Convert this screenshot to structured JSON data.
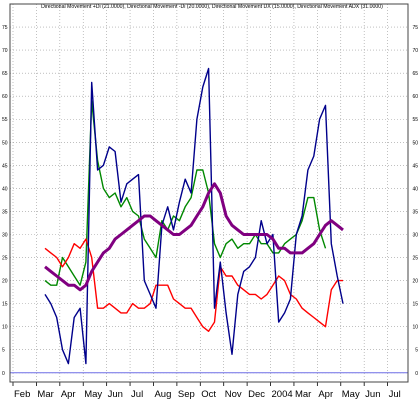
{
  "chart_data": {
    "type": "line",
    "title": "Directional Movement +Di (21.0000), Directional Movement -Di (20.0000), Directional Movement DX (15.0000), Directional Movement ADX (31.0000)",
    "ylim": [
      -2,
      80
    ],
    "y_ticks": [
      0,
      5,
      10,
      15,
      20,
      25,
      30,
      35,
      40,
      45,
      50,
      55,
      60,
      65,
      70,
      75
    ],
    "x_ticks": [
      "Feb",
      "Mar",
      "Apr",
      "May",
      "Jun",
      "Jul",
      "Aug",
      "Sep",
      "Oct",
      "Nov",
      "Dec",
      "2004",
      "Mar",
      "Apr",
      "May",
      "Jun",
      "Jul"
    ],
    "grid": true,
    "zero_line_color": "#6f6fe6",
    "series": [
      {
        "name": "Directional Movement +Di",
        "color": "#008800",
        "values": [
          [
            0,
            20
          ],
          [
            1,
            19
          ],
          [
            2,
            19
          ],
          [
            3,
            25
          ],
          [
            4,
            23
          ],
          [
            5,
            21
          ],
          [
            6,
            19
          ],
          [
            7,
            24
          ],
          [
            8,
            59
          ],
          [
            9,
            46
          ],
          [
            10,
            40
          ],
          [
            11,
            38
          ],
          [
            12,
            39
          ],
          [
            13,
            36
          ],
          [
            14,
            38
          ],
          [
            15,
            35
          ],
          [
            16,
            34
          ],
          [
            17,
            29
          ],
          [
            18,
            27
          ],
          [
            19,
            25
          ],
          [
            20,
            33
          ],
          [
            21,
            31
          ],
          [
            22,
            34
          ],
          [
            23,
            33
          ],
          [
            24,
            36
          ],
          [
            25,
            38
          ],
          [
            26,
            44
          ],
          [
            27,
            44
          ],
          [
            28,
            39
          ],
          [
            29,
            28
          ],
          [
            30,
            25
          ],
          [
            31,
            28
          ],
          [
            32,
            29
          ],
          [
            33,
            27
          ],
          [
            34,
            28
          ],
          [
            35,
            28
          ],
          [
            36,
            30
          ],
          [
            37,
            28
          ],
          [
            38,
            28
          ],
          [
            39,
            26
          ],
          [
            40,
            26
          ],
          [
            41,
            28
          ],
          [
            42,
            29
          ],
          [
            43,
            30
          ],
          [
            44,
            33
          ],
          [
            45,
            38
          ],
          [
            46,
            38
          ],
          [
            47,
            31
          ],
          [
            48,
            27
          ]
        ]
      },
      {
        "name": "Directional Movement -Di",
        "color": "#ff0000",
        "values": [
          [
            0,
            27
          ],
          [
            1,
            26
          ],
          [
            2,
            25
          ],
          [
            3,
            23
          ],
          [
            4,
            25
          ],
          [
            5,
            28
          ],
          [
            6,
            27
          ],
          [
            7,
            29
          ],
          [
            8,
            25
          ],
          [
            9,
            14
          ],
          [
            10,
            14
          ],
          [
            11,
            15
          ],
          [
            12,
            14
          ],
          [
            13,
            13
          ],
          [
            14,
            13
          ],
          [
            15,
            15
          ],
          [
            16,
            14
          ],
          [
            17,
            14
          ],
          [
            18,
            15
          ],
          [
            19,
            19
          ],
          [
            20,
            19
          ],
          [
            21,
            19
          ],
          [
            22,
            16
          ],
          [
            23,
            15
          ],
          [
            24,
            14
          ],
          [
            25,
            14
          ],
          [
            26,
            12
          ],
          [
            27,
            10
          ],
          [
            28,
            9
          ],
          [
            29,
            11
          ],
          [
            30,
            23
          ],
          [
            31,
            21
          ],
          [
            32,
            21
          ],
          [
            33,
            19
          ],
          [
            34,
            18
          ],
          [
            35,
            17
          ],
          [
            36,
            17
          ],
          [
            37,
            16
          ],
          [
            38,
            17
          ],
          [
            39,
            19
          ],
          [
            40,
            21
          ],
          [
            41,
            20
          ],
          [
            42,
            17
          ],
          [
            43,
            16
          ],
          [
            44,
            14
          ],
          [
            45,
            13
          ],
          [
            46,
            12
          ],
          [
            47,
            11
          ],
          [
            48,
            10
          ],
          [
            49,
            18
          ],
          [
            50,
            20
          ],
          [
            51,
            20
          ]
        ]
      },
      {
        "name": "Directional Movement DX",
        "color": "#00008b",
        "values": [
          [
            0,
            17
          ],
          [
            1,
            15
          ],
          [
            2,
            12
          ],
          [
            3,
            5
          ],
          [
            4,
            2
          ],
          [
            5,
            12
          ],
          [
            6,
            14
          ],
          [
            7,
            2
          ],
          [
            8,
            63
          ],
          [
            9,
            44
          ],
          [
            10,
            45
          ],
          [
            11,
            49
          ],
          [
            12,
            48
          ],
          [
            13,
            37
          ],
          [
            14,
            41
          ],
          [
            15,
            42
          ],
          [
            16,
            43
          ],
          [
            17,
            20
          ],
          [
            18,
            17
          ],
          [
            19,
            14
          ],
          [
            20,
            32
          ],
          [
            21,
            36
          ],
          [
            22,
            31
          ],
          [
            23,
            37
          ],
          [
            24,
            42
          ],
          [
            25,
            39
          ],
          [
            26,
            55
          ],
          [
            27,
            62
          ],
          [
            28,
            66
          ],
          [
            29,
            14
          ],
          [
            30,
            24
          ],
          [
            31,
            13
          ],
          [
            32,
            4
          ],
          [
            33,
            17
          ],
          [
            34,
            22
          ],
          [
            35,
            23
          ],
          [
            36,
            25
          ],
          [
            37,
            33
          ],
          [
            38,
            28
          ],
          [
            39,
            30
          ],
          [
            40,
            11
          ],
          [
            41,
            13
          ],
          [
            42,
            16
          ],
          [
            43,
            30
          ],
          [
            44,
            34
          ],
          [
            45,
            44
          ],
          [
            46,
            47
          ],
          [
            47,
            55
          ],
          [
            48,
            58
          ],
          [
            49,
            28
          ],
          [
            50,
            21
          ],
          [
            51,
            15
          ]
        ]
      },
      {
        "name": "Directional Movement ADX",
        "color": "#800080",
        "values": [
          [
            0,
            23
          ],
          [
            1,
            22
          ],
          [
            2,
            21
          ],
          [
            3,
            20
          ],
          [
            4,
            19
          ],
          [
            5,
            19
          ],
          [
            6,
            18
          ],
          [
            7,
            19
          ],
          [
            8,
            22
          ],
          [
            9,
            24
          ],
          [
            10,
            26
          ],
          [
            11,
            27
          ],
          [
            12,
            29
          ],
          [
            13,
            30
          ],
          [
            14,
            31
          ],
          [
            15,
            32
          ],
          [
            16,
            33
          ],
          [
            17,
            34
          ],
          [
            18,
            34
          ],
          [
            19,
            33
          ],
          [
            20,
            32
          ],
          [
            21,
            31
          ],
          [
            22,
            30
          ],
          [
            23,
            30
          ],
          [
            24,
            31
          ],
          [
            25,
            32
          ],
          [
            26,
            34
          ],
          [
            27,
            36
          ],
          [
            28,
            39
          ],
          [
            29,
            41
          ],
          [
            30,
            39
          ],
          [
            31,
            34
          ],
          [
            32,
            32
          ],
          [
            33,
            31
          ],
          [
            34,
            30
          ],
          [
            35,
            30
          ],
          [
            36,
            30
          ],
          [
            37,
            30
          ],
          [
            38,
            30
          ],
          [
            39,
            29
          ],
          [
            40,
            27
          ],
          [
            41,
            27
          ],
          [
            42,
            26
          ],
          [
            43,
            26
          ],
          [
            44,
            26
          ],
          [
            45,
            27
          ],
          [
            46,
            28
          ],
          [
            47,
            30
          ],
          [
            48,
            32
          ],
          [
            49,
            33
          ],
          [
            50,
            32
          ],
          [
            51,
            31
          ]
        ]
      }
    ]
  }
}
